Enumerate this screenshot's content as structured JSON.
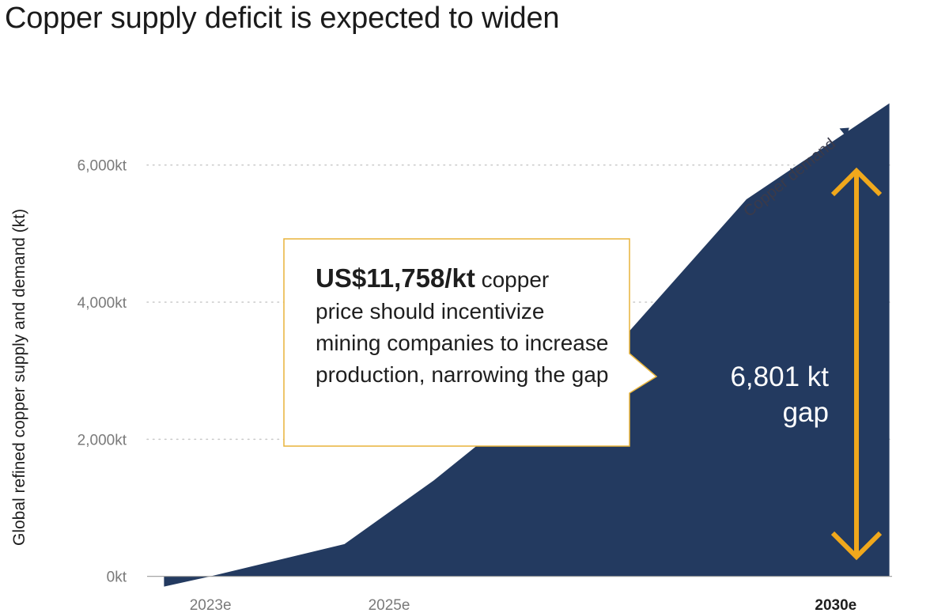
{
  "title": "Copper supply deficit is expected to widen",
  "colors": {
    "area": "#233a60",
    "accent": "#f0a81c",
    "grid": "#c9c9c9",
    "callout_border": "#e8b43a"
  },
  "callout": {
    "price": "US$11,758/kt",
    "text_line1": " copper",
    "text_rest": "price should incentivize mining companies to increase production, narrowing the gap"
  },
  "chart_data": {
    "type": "area",
    "ylabel": "Global refined copper supply and demand  (kt)",
    "yticks": [
      {
        "value": 0,
        "label": "0kt"
      },
      {
        "value": 2000,
        "label": "2,000kt"
      },
      {
        "value": 4000,
        "label": "4,000kt"
      },
      {
        "value": 6000,
        "label": "6,000kt"
      }
    ],
    "ylim": [
      -200,
      7000
    ],
    "xlim": [
      2022.45,
      2030.63
    ],
    "xticks": [
      {
        "value": 2023,
        "label": "2023e",
        "bold": false
      },
      {
        "value": 2025,
        "label": "2025e",
        "bold": false
      },
      {
        "value": 2030,
        "label": "2030e",
        "bold": true
      }
    ],
    "grid": "dotted horizontal",
    "series": [
      {
        "name": "Copper demand",
        "x": [
          2022.48,
          2023.0,
          2024.5,
          2025.5,
          2026.5,
          2027.5,
          2029.0,
          2030.6
        ],
        "y": [
          -150,
          0,
          470,
          1400,
          2450,
          3300,
          5500,
          6900
        ]
      }
    ],
    "annotations": {
      "series_label": "Copper demand",
      "gap_label_line1": "6,801 kt",
      "gap_label_line2": "gap"
    }
  }
}
